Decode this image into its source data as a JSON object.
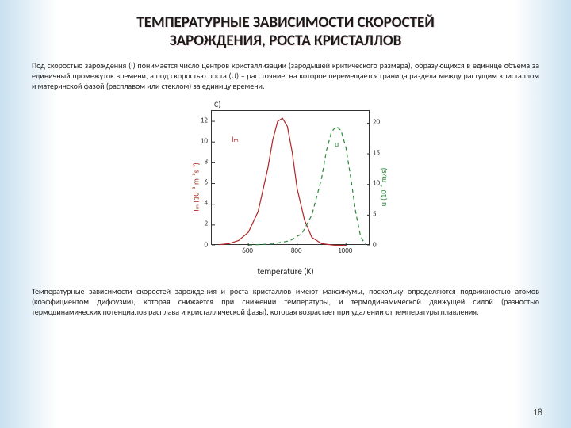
{
  "title_line1": "ТЕМПЕРАТУРНЫЕ ЗАВИСИМОСТИ СКОРОСТЕЙ",
  "title_line2": "ЗАРОЖДЕНИЯ, РОСТА КРИСТАЛЛОВ",
  "intro": "Под скоростью зарождения (I) понимается число центров кристаллизации (зародышей критического размера), образующихся в единице объема за единичный промежуток времени, а под скоростью роста (U) – расстояние, на которое перемещается граница раздела между растущим кристаллом и материнской фазой (расплавом или стеклом) за единицу времени.",
  "chart": {
    "panel_label": "C)",
    "type": "line",
    "xlabel": "temperature (K)",
    "ylabel_left": "Iₘ (10⁻⁸ m⁻³s⁻¹)",
    "ylabel_right": "u (10⁻⁴ m/s)",
    "ylabel_left_color": "#a03020",
    "ylabel_right_color": "#2a8a3a",
    "x_ticks": [
      600,
      800,
      1000
    ],
    "x_range": [
      450,
      1100
    ],
    "yl_ticks": [
      0,
      2,
      4,
      6,
      8,
      10,
      12
    ],
    "yl_range": [
      0,
      13
    ],
    "yr_ticks": [
      0,
      5,
      10,
      15,
      20
    ],
    "yr_range": [
      0,
      22
    ],
    "series_Im": {
      "label": "Iₘ",
      "label_pos_x": 580,
      "label_pos_yl": 10.2,
      "color": "#b02525",
      "dash": "none",
      "line_width": 1.2,
      "x": [
        480,
        520,
        560,
        600,
        640,
        680,
        700,
        720,
        740,
        760,
        780,
        800,
        830,
        860,
        900,
        950,
        1000
      ],
      "y": [
        0.1,
        0.2,
        0.5,
        1.3,
        3.3,
        7.5,
        10.2,
        12.0,
        12.3,
        11.5,
        9.0,
        5.5,
        2.5,
        0.8,
        0.2,
        0.05,
        0.02
      ]
    },
    "series_u": {
      "label": "u",
      "label_pos_x": 970,
      "label_pos_yr": 16.5,
      "color": "#2a8a3a",
      "dash": "5,4",
      "line_width": 1.2,
      "x": [
        600,
        700,
        770,
        820,
        860,
        900,
        920,
        940,
        960,
        980,
        1000,
        1020,
        1040,
        1060,
        1080
      ],
      "y": [
        0.1,
        0.3,
        0.8,
        2.0,
        5.0,
        11.0,
        15.5,
        18.5,
        19.5,
        18.8,
        16.0,
        11.0,
        5.5,
        1.5,
        0.2
      ]
    }
  },
  "conclusion": "Температурные зависимости скоростей зарождения и роста кристаллов имеют максимумы, поскольку определяются подвижностью атомов (коэффициентом диффузии), которая снижается при снижении температуры, и термодинамической движущей силой (разностью термодинамических потенциалов расплава и кристаллической фазы), которая возрастает при удалении от температуры плавления.",
  "page_number": "18"
}
